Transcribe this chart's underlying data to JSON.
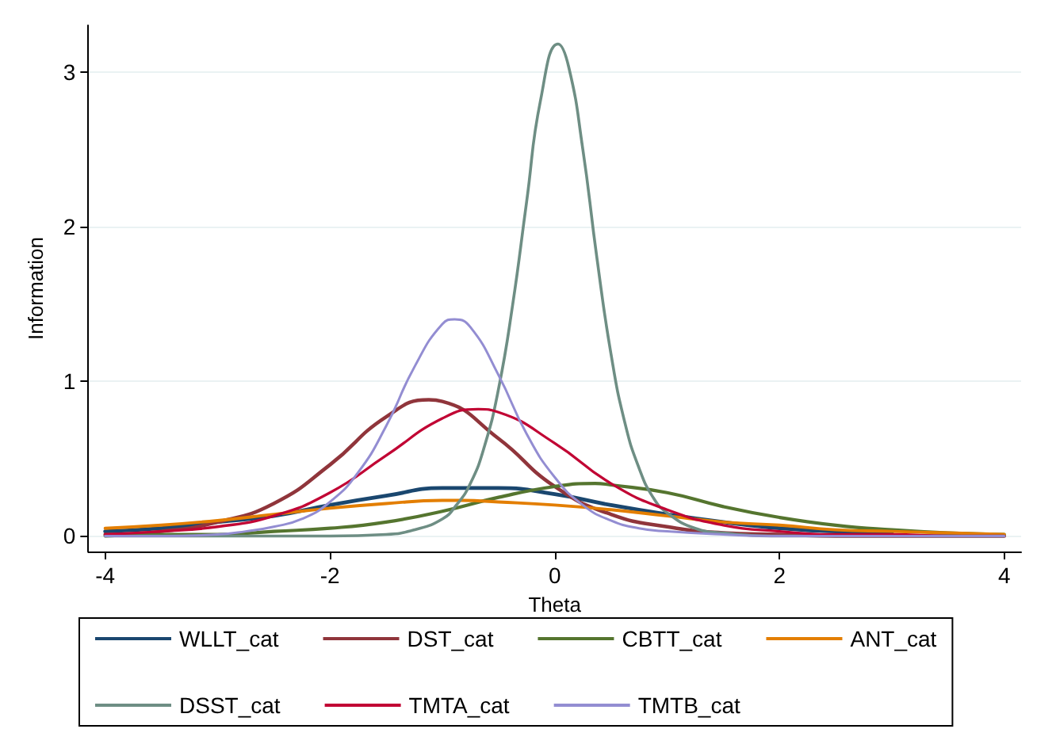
{
  "chart_data": {
    "type": "line",
    "xlabel": "Theta",
    "ylabel": "Information",
    "xlim": [
      -4.15,
      4.15
    ],
    "xticks": [
      -4,
      -2,
      0,
      2,
      4
    ],
    "ylim": [
      -0.1,
      3.3
    ],
    "yticks": [
      0,
      1,
      2,
      3
    ],
    "grid": "y",
    "legend": "bottom",
    "marker": "none",
    "line_style": "solid",
    "series": [
      {
        "name": "WLLT_cat",
        "color": "#1a476f",
        "x": [
          -4,
          -3.5,
          -3,
          -2.5,
          -2,
          -1.5,
          -1,
          -0.74,
          -0.5,
          0,
          0.5,
          1,
          1.5,
          2,
          2.5,
          3
        ],
        "values": [
          0.03,
          0.05,
          0.09,
          0.13,
          0.2,
          0.26,
          0.31,
          0.31,
          0.31,
          0.27,
          0.2,
          0.14,
          0.09,
          0.05,
          0.03,
          0.02
        ]
      },
      {
        "name": "DST_cat",
        "color": "#90353b",
        "x": [
          -4,
          -3.5,
          -3,
          -2.5,
          -2,
          -1.5,
          -1.12,
          -1,
          -0.5,
          0,
          0.5,
          1,
          1.5,
          2,
          2.5,
          3,
          3.5,
          4
        ],
        "values": [
          0.01,
          0.03,
          0.09,
          0.21,
          0.46,
          0.77,
          0.88,
          0.87,
          0.63,
          0.32,
          0.14,
          0.06,
          0.02,
          0.01,
          0,
          0,
          0,
          0
        ]
      },
      {
        "name": "CBTT_cat",
        "color": "#55752f",
        "x": [
          -4,
          -3.5,
          -3,
          -2.5,
          -2,
          -1.5,
          -1,
          -0.5,
          0,
          0.36,
          0.5,
          1,
          1.5,
          2,
          2.5,
          3,
          3.5,
          4
        ],
        "values": [
          0,
          0.01,
          0.01,
          0.03,
          0.05,
          0.09,
          0.16,
          0.25,
          0.32,
          0.34,
          0.33,
          0.28,
          0.19,
          0.12,
          0.07,
          0.04,
          0.02,
          0.01
        ]
      },
      {
        "name": "ANT_cat",
        "color": "#e37e00",
        "x": [
          -4,
          -3.5,
          -3,
          -2.5,
          -2,
          -1.5,
          -1,
          -0.82,
          -0.5,
          0,
          0.5,
          1,
          1.5,
          2,
          2.5,
          3,
          3.5,
          4
        ],
        "values": [
          0.05,
          0.07,
          0.1,
          0.14,
          0.18,
          0.21,
          0.23,
          0.23,
          0.22,
          0.2,
          0.17,
          0.13,
          0.09,
          0.07,
          0.04,
          0.03,
          0.02,
          0.01
        ]
      },
      {
        "name": "DSST_cat",
        "color": "#6e8e84",
        "x": [
          -4,
          -3,
          -2,
          -1.5,
          -1.25,
          -1,
          -0.875,
          -0.75,
          -0.625,
          -0.5,
          -0.375,
          -0.25,
          -0.125,
          0.03,
          0.125,
          0.25,
          0.375,
          0.5,
          0.625,
          0.75,
          0.875,
          1,
          1.25,
          1.5,
          2,
          3,
          4
        ],
        "values": [
          0,
          0,
          0,
          0.01,
          0.04,
          0.11,
          0.2,
          0.34,
          0.58,
          0.95,
          1.49,
          2.16,
          2.82,
          3.18,
          3.03,
          2.5,
          1.8,
          1.18,
          0.73,
          0.44,
          0.25,
          0.15,
          0.05,
          0.02,
          0,
          0,
          0
        ]
      },
      {
        "name": "TMTA_cat",
        "color": "#c10534",
        "x": [
          -4,
          -3.5,
          -3,
          -2.5,
          -2,
          -1.5,
          -1,
          -0.68,
          -0.5,
          0,
          0.5,
          1,
          1.5,
          2,
          2.5,
          3,
          3.5,
          4
        ],
        "values": [
          0.01,
          0.03,
          0.06,
          0.13,
          0.28,
          0.52,
          0.76,
          0.82,
          0.8,
          0.6,
          0.34,
          0.17,
          0.07,
          0.03,
          0.01,
          0.01,
          0,
          0
        ]
      },
      {
        "name": "TMTB_cat",
        "color": "#938dd2",
        "x": [
          -4,
          -3.5,
          -3,
          -2.75,
          -2.5,
          -2.25,
          -2,
          -1.75,
          -1.5,
          -1.25,
          -1,
          -0.89,
          -0.75,
          -0.5,
          -0.25,
          0,
          0.25,
          0.5,
          0.75,
          1,
          1.5,
          2,
          3,
          4
        ],
        "values": [
          0,
          0,
          0.01,
          0.03,
          0.06,
          0.11,
          0.22,
          0.41,
          0.71,
          1.09,
          1.37,
          1.4,
          1.35,
          1.04,
          0.66,
          0.38,
          0.2,
          0.1,
          0.05,
          0.03,
          0.01,
          0,
          0,
          0
        ]
      }
    ]
  }
}
